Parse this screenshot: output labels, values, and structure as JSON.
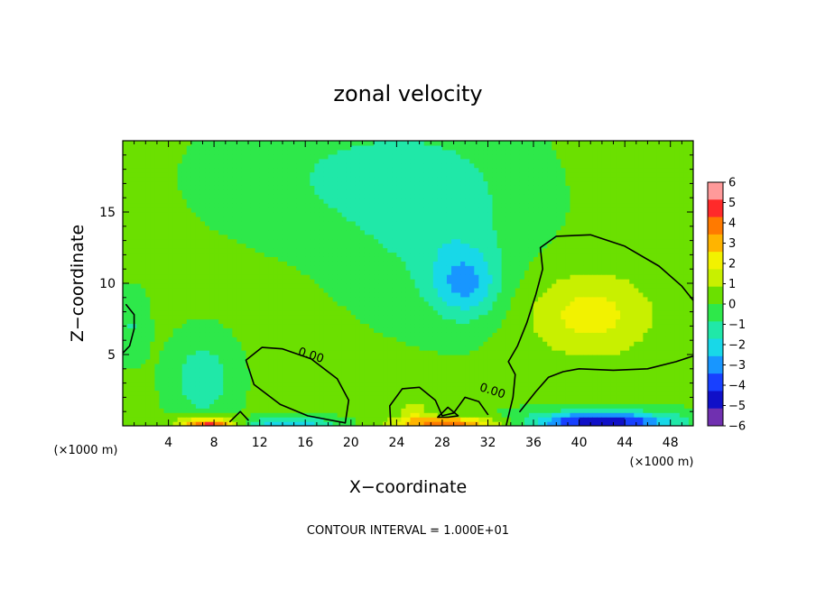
{
  "chart_data": {
    "type": "heatmap",
    "title": "zonal velocity",
    "xlabel": "X−coordinate",
    "ylabel": "Z−coordinate",
    "x_unit_left": "(×1000 m)",
    "x_unit_right": "(×1000 m)",
    "footer": "CONTOUR INTERVAL = 1.000E+01",
    "xlim": [
      0,
      50
    ],
    "ylim": [
      0,
      20
    ],
    "x_ticks": [
      4,
      8,
      12,
      16,
      20,
      24,
      28,
      32,
      36,
      40,
      44,
      48
    ],
    "x_tick_labels": [
      "4",
      "8",
      "12",
      "16",
      "20",
      "24",
      "28",
      "32",
      "36",
      "40",
      "44",
      "48"
    ],
    "y_ticks": [
      5,
      10,
      15
    ],
    "y_tick_labels": [
      "5",
      "10",
      "15"
    ],
    "grid": false,
    "colorbar": {
      "range": [
        -6,
        6
      ],
      "labels": [
        "6",
        "5",
        "4",
        "3",
        "2",
        "1",
        "0",
        "−1",
        "−2",
        "−3",
        "−4",
        "−5",
        "−6"
      ],
      "colors": [
        "#ff9a9a",
        "#ff2a2a",
        "#ff7a00",
        "#ffb400",
        "#f2f200",
        "#c8f000",
        "#6be000",
        "#2ee84a",
        "#20e8a8",
        "#18d8e8",
        "#1896ff",
        "#1840ff",
        "#1010c8",
        "#7030b0"
      ],
      "position": "right"
    },
    "contour_labels": [
      {
        "text": "0.00",
        "x": 16.4,
        "y": 4.7
      },
      {
        "text": "0.00",
        "x": 32.3,
        "y": 2.2
      }
    ],
    "contours_zero": [
      [
        [
          9.4,
          0.3
        ],
        [
          10.3,
          1.0
        ],
        [
          11.0,
          0.4
        ]
      ],
      [
        [
          0.3,
          8.5
        ],
        [
          1.0,
          7.8
        ],
        [
          1.0,
          6.8
        ],
        [
          0.6,
          5.6
        ],
        [
          0,
          5.1
        ]
      ],
      [
        [
          19.5,
          0.2
        ],
        [
          19.8,
          1.8
        ],
        [
          18.8,
          3.3
        ],
        [
          16.5,
          4.7
        ],
        [
          14.0,
          5.4
        ],
        [
          12.2,
          5.5
        ],
        [
          10.8,
          4.6
        ],
        [
          11.5,
          2.9
        ],
        [
          13.8,
          1.5
        ],
        [
          16.2,
          0.7
        ],
        [
          19.5,
          0.2
        ]
      ],
      [
        [
          23.5,
          0.0
        ],
        [
          23.4,
          1.4
        ],
        [
          24.5,
          2.6
        ],
        [
          26.0,
          2.7
        ],
        [
          27.4,
          1.8
        ],
        [
          28.0,
          0.7
        ],
        [
          29.0,
          0.9
        ],
        [
          30.0,
          2.0
        ],
        [
          31.2,
          1.7
        ],
        [
          32.0,
          0.8
        ]
      ],
      [
        [
          27.6,
          0.6
        ],
        [
          28.5,
          1.3
        ],
        [
          29.4,
          0.7
        ],
        [
          28.5,
          0.6
        ],
        [
          27.6,
          0.6
        ]
      ],
      [
        [
          33.6,
          0.0
        ],
        [
          34.2,
          2.0
        ],
        [
          34.4,
          3.6
        ],
        [
          33.8,
          4.5
        ],
        [
          34.6,
          5.6
        ],
        [
          35.4,
          7.2
        ],
        [
          36.2,
          9.2
        ],
        [
          36.8,
          11.0
        ],
        [
          36.6,
          12.5
        ],
        [
          38.0,
          13.3
        ],
        [
          41.0,
          13.4
        ],
        [
          44.0,
          12.6
        ],
        [
          47.0,
          11.2
        ],
        [
          49.0,
          9.8
        ],
        [
          50.0,
          8.8
        ]
      ],
      [
        [
          34.8,
          1.0
        ],
        [
          36.2,
          2.4
        ],
        [
          37.3,
          3.4
        ],
        [
          38.6,
          3.8
        ],
        [
          40.0,
          4.0
        ],
        [
          43.0,
          3.9
        ],
        [
          46.0,
          4.0
        ],
        [
          48.5,
          4.5
        ],
        [
          50.0,
          4.9
        ]
      ]
    ],
    "velocity_features": [
      {
        "x": 30.0,
        "y": 10.0,
        "value": -2.5,
        "sx": 3.0,
        "sy": 2.5
      },
      {
        "x": 27.5,
        "y": 14.5,
        "value": -1.3,
        "sx": 7.0,
        "sy": 5.5
      },
      {
        "x": 20.0,
        "y": 17.5,
        "value": -1.0,
        "sx": 10.0,
        "sy": 4.0
      },
      {
        "x": 41.0,
        "y": 7.8,
        "value": 2.0,
        "sx": 5.5,
        "sy": 3.0
      },
      {
        "x": 7.0,
        "y": 3.3,
        "value": -1.8,
        "sx": 2.4,
        "sy": 2.5
      },
      {
        "x": 0.8,
        "y": 7.0,
        "value": -1.0,
        "sx": 1.2,
        "sy": 2.0
      },
      {
        "x": 7.5,
        "y": 0.15,
        "value": 4.8,
        "sx": 2.5,
        "sy": 0.45
      },
      {
        "x": 14.5,
        "y": 0.2,
        "value": -2.6,
        "sx": 4.0,
        "sy": 0.4
      },
      {
        "x": 28.5,
        "y": 0.2,
        "value": 3.8,
        "sx": 4.5,
        "sy": 0.45
      },
      {
        "x": 42.0,
        "y": 0.3,
        "value": -5.2,
        "sx": 6.0,
        "sy": 0.7
      },
      {
        "x": 25.5,
        "y": 1.0,
        "value": 1.3,
        "sx": 1.3,
        "sy": 0.9
      }
    ],
    "background_value": 0.1
  }
}
